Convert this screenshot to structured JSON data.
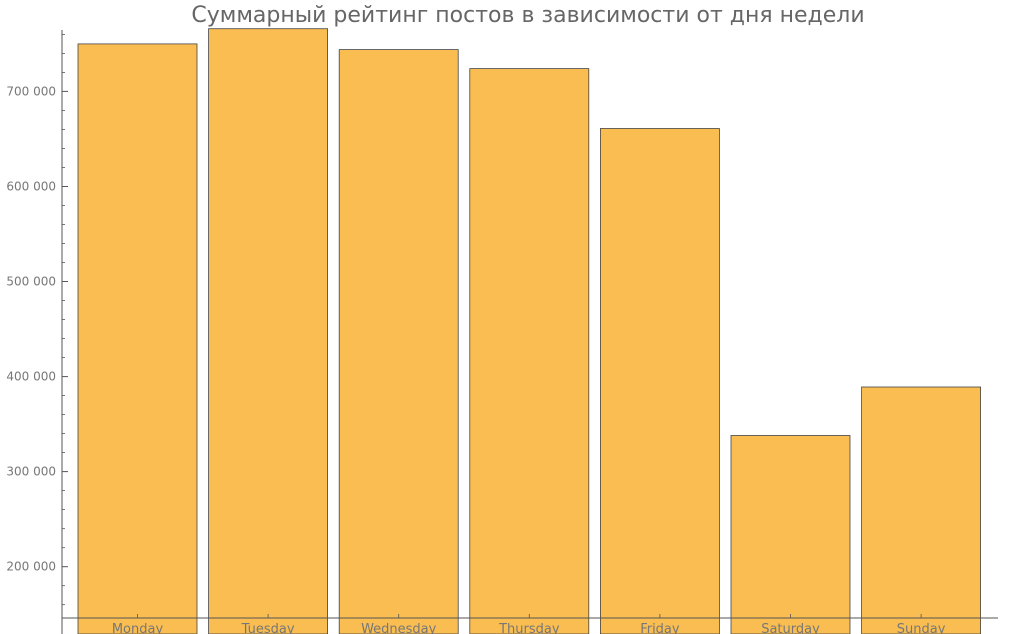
{
  "chart_data": {
    "type": "bar",
    "title": "Суммарный рейтинг постов в зависимости от дня недели",
    "xlabel": "",
    "ylabel": "",
    "categories": [
      "Monday",
      "Tuesday",
      "Wednesday",
      "Thursday",
      "Friday",
      "Saturday",
      "Sunday"
    ],
    "values": [
      750000,
      766000,
      744000,
      724000,
      661000,
      338000,
      389000
    ],
    "ylim": [
      146000,
      772000
    ],
    "yticks": [
      200000,
      300000,
      400000,
      500000,
      600000,
      700000
    ],
    "ytick_labels": [
      "200 000",
      "300 000",
      "400 000",
      "500 000",
      "600 000",
      "700 000"
    ],
    "grid": false,
    "legend": "none",
    "colors": {
      "bar_fill": "#f9bd52",
      "bar_stroke": "#444444",
      "axis": "#555555"
    }
  }
}
